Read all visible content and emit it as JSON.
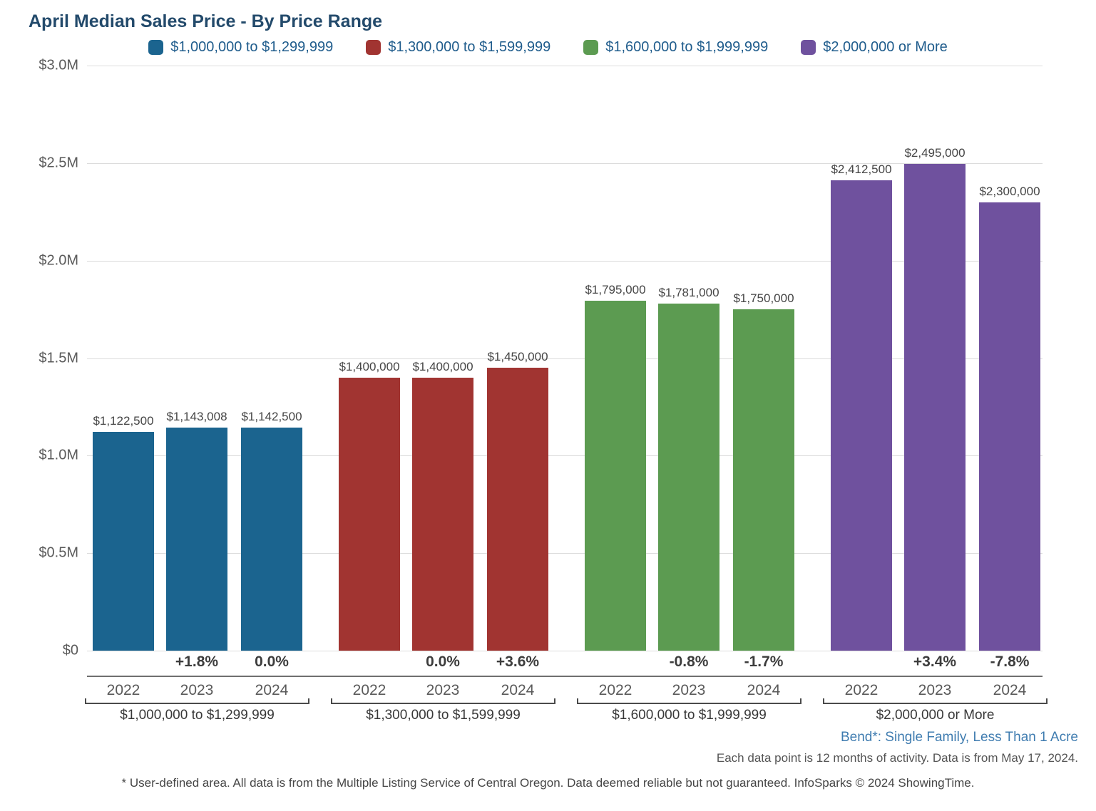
{
  "title": "April Median Sales Price - By Price Range",
  "chart_data": {
    "type": "bar",
    "title": "April Median Sales Price - By Price Range",
    "xlabel": "",
    "ylabel": "",
    "ylim": [
      0,
      3000000
    ],
    "grid": true,
    "legend_position": "top",
    "y_ticks": [
      {
        "label": "$3.0M",
        "value": 3000000
      },
      {
        "label": "$2.5M",
        "value": 2500000
      },
      {
        "label": "$2.0M",
        "value": 2000000
      },
      {
        "label": "$1.5M",
        "value": 1500000
      },
      {
        "label": "$1.0M",
        "value": 1000000
      },
      {
        "label": "$0.5M",
        "value": 500000
      },
      {
        "label": "$0",
        "value": 0
      }
    ],
    "years": [
      "2022",
      "2023",
      "2024"
    ],
    "groups": [
      {
        "label": "$1,000,000 to $1,299,999",
        "color": "#1B648F",
        "bars": [
          {
            "value": 1122500,
            "value_label": "$1,122,500",
            "pct_change": ""
          },
          {
            "value": 1143008,
            "value_label": "$1,143,008",
            "pct_change": "+1.8%"
          },
          {
            "value": 1142500,
            "value_label": "$1,142,500",
            "pct_change": "0.0%"
          }
        ]
      },
      {
        "label": "$1,300,000 to $1,599,999",
        "color": "#A13431",
        "bars": [
          {
            "value": 1400000,
            "value_label": "$1,400,000",
            "pct_change": ""
          },
          {
            "value": 1400000,
            "value_label": "$1,400,000",
            "pct_change": "0.0%"
          },
          {
            "value": 1450000,
            "value_label": "$1,450,000",
            "pct_change": "+3.6%"
          }
        ]
      },
      {
        "label": "$1,600,000 to $1,999,999",
        "color": "#5C9B51",
        "bars": [
          {
            "value": 1795000,
            "value_label": "$1,795,000",
            "pct_change": ""
          },
          {
            "value": 1781000,
            "value_label": "$1,781,000",
            "pct_change": "-0.8%"
          },
          {
            "value": 1750000,
            "value_label": "$1,750,000",
            "pct_change": "-1.7%"
          }
        ]
      },
      {
        "label": "$2,000,000 or More",
        "color": "#6F519E",
        "bars": [
          {
            "value": 2412500,
            "value_label": "$2,412,500",
            "pct_change": ""
          },
          {
            "value": 2495000,
            "value_label": "$2,495,000",
            "pct_change": "+3.4%"
          },
          {
            "value": 2300000,
            "value_label": "$2,300,000",
            "pct_change": "-7.8%"
          }
        ]
      }
    ]
  },
  "footer": {
    "area_label": "Bend*: Single Family, Less Than 1 Acre",
    "data_note": "Each data point is 12 months of activity. Data is from May 17, 2024.",
    "disclaimer": "* User-defined area. All data is from the Multiple Listing Service of Central Oregon. Data deemed reliable but not guaranteed. InfoSparks © 2024 ShowingTime."
  },
  "colors": {
    "title_text": "#234A6B",
    "legend_text": "#1F5C8C",
    "gridline": "#DCDCDC",
    "axis_line": "#6F6F6F",
    "bracket": "#4A4A4A",
    "tick_text": "#5A5A5A",
    "bar_blue": "#1B648F",
    "bar_red": "#A13431",
    "bar_green": "#5C9B51",
    "bar_purple": "#6F519E",
    "area_label_text": "#3F7CB0"
  }
}
